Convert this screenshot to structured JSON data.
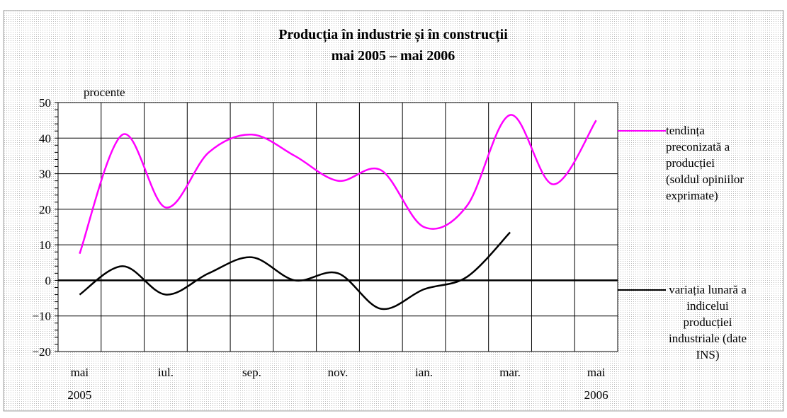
{
  "chart_data": {
    "type": "line",
    "title": "Producția în industrie și în construcții",
    "subtitle": "mai 2005 – mai 2006",
    "y_label": "procente",
    "categories": [
      "mai 2005",
      null,
      "iul.",
      null,
      "sep.",
      null,
      "nov.",
      null,
      "ian.",
      null,
      "mar.",
      null,
      "mai 2006"
    ],
    "series": [
      {
        "name": "tendința preconizată a producției (soldul opiniilor exprimate)",
        "color": "#ff00ff",
        "values": [
          7.5,
          41,
          20.5,
          36,
          41,
          35,
          28,
          31,
          15,
          21,
          46.5,
          27,
          45
        ]
      },
      {
        "name": "variația lunară a indicelui producției industriale (date INS)",
        "color": "#000000",
        "values": [
          -4,
          4,
          -4,
          2,
          6.5,
          0,
          2,
          -8,
          -2.5,
          1,
          13.5,
          null,
          null
        ]
      }
    ],
    "ylim": [
      -20,
      50
    ],
    "yticks": [
      {
        "value": -20,
        "label": "−20"
      },
      {
        "value": -10,
        "label": "−10"
      },
      0,
      10,
      20,
      30,
      40,
      50
    ],
    "grid": true,
    "smooth": true,
    "legend": "right"
  }
}
